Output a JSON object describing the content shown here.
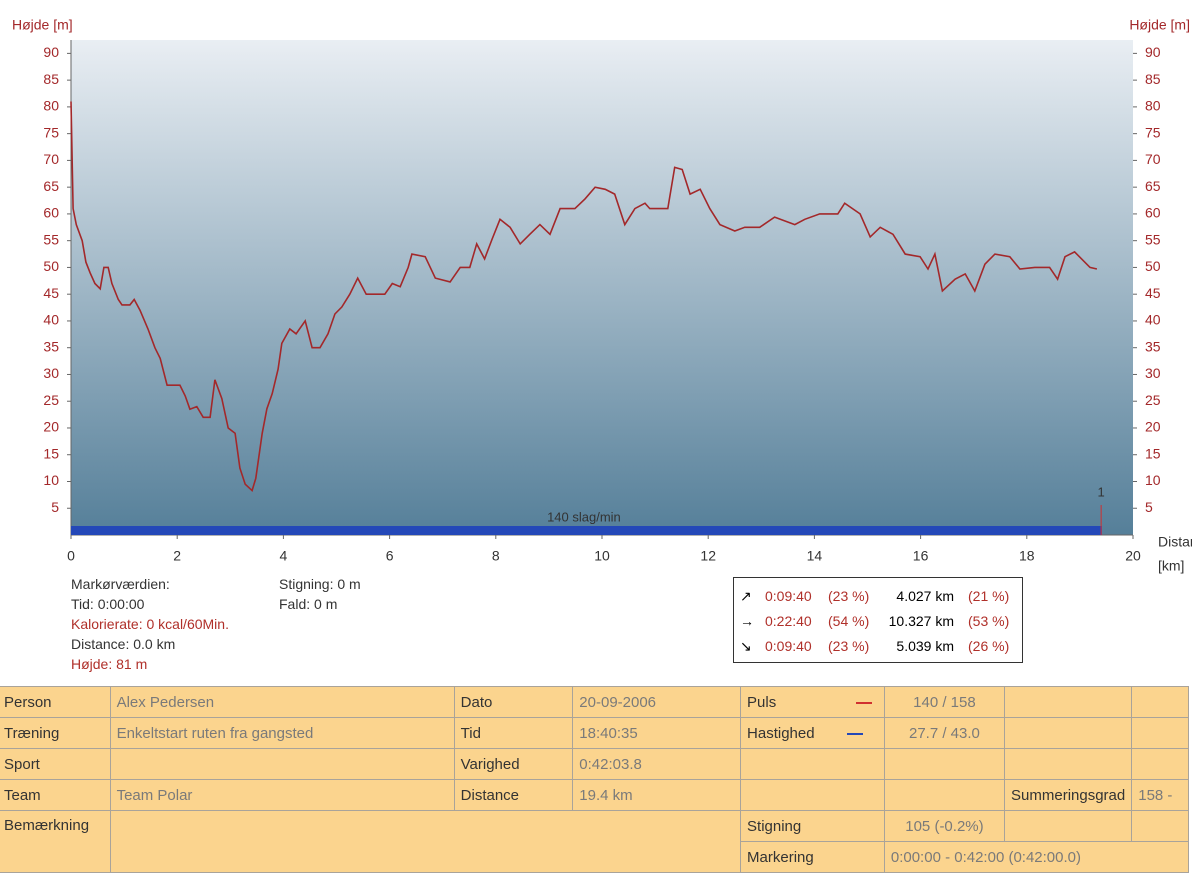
{
  "chart_data": {
    "type": "line",
    "y_label": "Højde [m]",
    "y2_label": "Højde [m]",
    "x_label": "Distance",
    "x_unit": "[km]",
    "x": [
      0,
      0.04,
      0.1,
      0.21,
      0.28,
      0.36,
      0.45,
      0.55,
      0.62,
      0.7,
      0.77,
      0.89,
      0.96,
      1.11,
      1.19,
      1.3,
      1.45,
      1.58,
      1.68,
      1.81,
      2.05,
      2.15,
      2.24,
      2.37,
      2.49,
      2.62,
      2.71,
      2.84,
      2.96,
      3.09,
      3.18,
      3.28,
      3.41,
      3.48,
      3.6,
      3.69,
      3.79,
      3.9,
      3.97,
      4.12,
      4.24,
      4.41,
      4.54,
      4.69,
      4.84,
      4.97,
      5.1,
      5.25,
      5.4,
      5.56,
      5.91,
      6.05,
      6.2,
      6.35,
      6.42,
      6.67,
      6.86,
      7.14,
      7.33,
      7.51,
      7.64,
      7.79,
      7.93,
      8.08,
      8.27,
      8.46,
      8.64,
      8.83,
      9.02,
      9.21,
      9.49,
      9.68,
      9.87,
      10.06,
      10.24,
      10.43,
      10.62,
      10.81,
      10.9,
      11.24,
      11.37,
      11.51,
      11.66,
      11.85,
      12.03,
      12.22,
      12.5,
      12.69,
      12.97,
      13.25,
      13.63,
      13.82,
      14.1,
      14.44,
      14.57,
      14.86,
      15.05,
      15.24,
      15.48,
      15.71,
      15.99,
      16.14,
      16.27,
      16.41,
      16.65,
      16.84,
      17.02,
      17.21,
      17.4,
      17.68,
      17.87,
      18.15,
      18.43,
      18.58,
      18.72,
      18.9,
      19.19,
      19.32
    ],
    "values": [
      81,
      61,
      58,
      55,
      51,
      49,
      47,
      46,
      50,
      50,
      47,
      44,
      43,
      43,
      44,
      42,
      38.5,
      35,
      33,
      28,
      28,
      26,
      23.5,
      24,
      22,
      22,
      29,
      25.5,
      20,
      19,
      12.5,
      9.5,
      8.3,
      10.6,
      19,
      23.6,
      26.4,
      31,
      35.8,
      38.5,
      37.6,
      40,
      35,
      35,
      37.6,
      41.3,
      42.6,
      45,
      48,
      45,
      45,
      47,
      46.4,
      50,
      52.5,
      52,
      48,
      47.3,
      50,
      50,
      54.4,
      51.6,
      55.3,
      59,
      57.5,
      54.4,
      56.2,
      58,
      56.2,
      61,
      61,
      62.8,
      65,
      64.6,
      63.7,
      58,
      61,
      62,
      61,
      61,
      68.7,
      68.3,
      63.7,
      64.6,
      61,
      58,
      56.8,
      57.5,
      57.5,
      59.4,
      58,
      59,
      60,
      60,
      62,
      60,
      55.7,
      57.5,
      56.2,
      52.5,
      52,
      49.7,
      52.5,
      45.6,
      47.8,
      48.8,
      45.6,
      50.6,
      52.5,
      52,
      49.7,
      50,
      50,
      47.8,
      52,
      52.9,
      50,
      49.7
    ],
    "color": "#a3282a",
    "xlim": [
      0,
      20
    ],
    "xticks": [
      0,
      2,
      4,
      6,
      8,
      10,
      12,
      14,
      16,
      18,
      20
    ],
    "ylim": [
      0,
      92.5
    ],
    "yticks": [
      5,
      10,
      15,
      20,
      25,
      30,
      35,
      40,
      45,
      50,
      55,
      60,
      65,
      70,
      75,
      80,
      85,
      90
    ],
    "band_label": "140 slag/min",
    "band_color": "#2448b8",
    "lap_marker": {
      "label": "1",
      "x": 19.4
    }
  },
  "cursor": {
    "title": "Markørværdien:",
    "lines": [
      "Tid: 0:00:00",
      "Kalorierate: 0 kcal/60Min.",
      "Distance: 0.0 km",
      "Højde: 81 m"
    ],
    "right": [
      "Stigning: 0 m",
      "Fald: 0 m"
    ]
  },
  "summary": {
    "rows": [
      [
        "0:09:40",
        "(23 %)",
        "4.027 km",
        "(21 %)"
      ],
      [
        "0:22:40",
        "(54 %)",
        "10.327 km",
        "(53 %)"
      ],
      [
        "0:09:40",
        "(23 %)",
        "5.039 km",
        "(26 %)"
      ]
    ]
  },
  "table": {
    "rows": [
      [
        "Person",
        "Alex  Pedersen",
        "Dato",
        "20-09-2006",
        "Puls",
        "140 / 158"
      ],
      [
        "Træning",
        "Enkeltstart ruten fra gangsted",
        "Tid",
        "18:40:35",
        "Hastighed",
        "27.7 / 43.0"
      ],
      [
        "Sport",
        "Varighed",
        "0:42:03.8"
      ],
      [
        "Team",
        "Team Polar",
        "Distance",
        "19.4 km",
        "Summeringsgrad",
        "158 -"
      ],
      [
        "Bemærkning",
        "Stigning",
        "105 (-0.2%)"
      ],
      [
        "Markering",
        "0:00:00 - 0:42:00 (0:42:00.0)"
      ]
    ]
  }
}
